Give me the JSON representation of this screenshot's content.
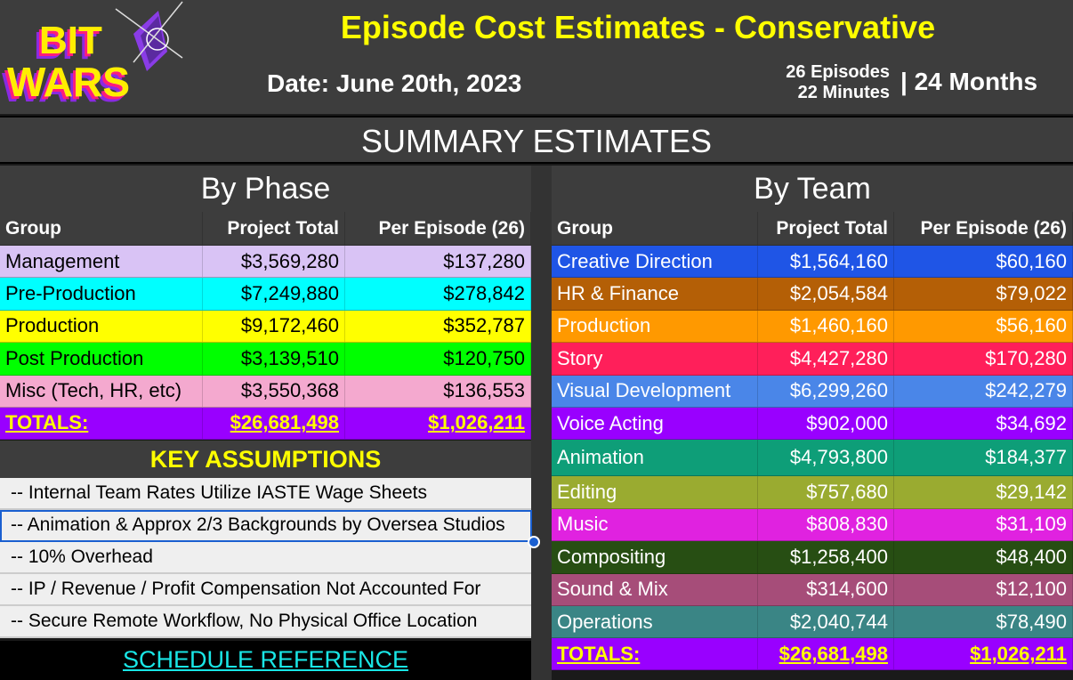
{
  "header": {
    "logo_text": "BIT WARS",
    "title": "Episode Cost Estimates - Conservative",
    "date": "Date: June 20th, 2023",
    "episodes": "26 Episodes",
    "minutes": "22 Minutes",
    "months": "| 24 Months"
  },
  "summary_title": "SUMMARY ESTIMATES",
  "by_phase": {
    "title": "By Phase",
    "columns": [
      "Group",
      "Project Total",
      "Per Episode (26)"
    ],
    "rows": [
      {
        "group": "Management",
        "total": "$3,569,280",
        "per": "$137,280",
        "color": "#d9c3f5",
        "text": "#000"
      },
      {
        "group": "Pre-Production",
        "total": "$7,249,880",
        "per": "$278,842",
        "color": "#00ffff",
        "text": "#000"
      },
      {
        "group": "Production",
        "total": "$9,172,460",
        "per": "$352,787",
        "color": "#ffff00",
        "text": "#000"
      },
      {
        "group": "Post Production",
        "total": "$3,139,510",
        "per": "$120,750",
        "color": "#00ff00",
        "text": "#000"
      },
      {
        "group": "Misc (Tech, HR, etc)",
        "total": "$3,550,368",
        "per": "$136,553",
        "color": "#f4a9cf",
        "text": "#000"
      }
    ],
    "totals": {
      "label": "TOTALS:",
      "total": "$26,681,498",
      "per": "$1,026,211"
    }
  },
  "by_team": {
    "title": "By Team",
    "columns": [
      "Group",
      "Project Total",
      "Per Episode (26)"
    ],
    "rows": [
      {
        "group": "Creative Direction",
        "total": "$1,564,160",
        "per": "$60,160",
        "color": "#1f55e6",
        "text": "#fff"
      },
      {
        "group": "HR & Finance",
        "total": "$2,054,584",
        "per": "$79,022",
        "color": "#b45f06",
        "text": "#fff"
      },
      {
        "group": "Production",
        "total": "$1,460,160",
        "per": "$56,160",
        "color": "#ff9900",
        "text": "#fff"
      },
      {
        "group": "Story",
        "total": "$4,427,280",
        "per": "$170,280",
        "color": "#ff1f5a",
        "text": "#fff"
      },
      {
        "group": "Visual Development",
        "total": "$6,299,260",
        "per": "$242,279",
        "color": "#4a86e8",
        "text": "#fff"
      },
      {
        "group": "Voice Acting",
        "total": "$902,000",
        "per": "$34,692",
        "color": "#9900ff",
        "text": "#fff"
      },
      {
        "group": "Animation",
        "total": "$4,793,800",
        "per": "$184,377",
        "color": "#0e9e78",
        "text": "#fff"
      },
      {
        "group": "Editing",
        "total": "$757,680",
        "per": "$29,142",
        "color": "#9aab30",
        "text": "#fff"
      },
      {
        "group": "Music",
        "total": "$808,830",
        "per": "$31,109",
        "color": "#e022e0",
        "text": "#fff"
      },
      {
        "group": "Compositing",
        "total": "$1,258,400",
        "per": "$48,400",
        "color": "#274e13",
        "text": "#fff"
      },
      {
        "group": "Sound & Mix",
        "total": "$314,600",
        "per": "$12,100",
        "color": "#a64d79",
        "text": "#fff"
      },
      {
        "group": "Operations",
        "total": "$2,040,744",
        "per": "$78,490",
        "color": "#3a8585",
        "text": "#fff"
      }
    ],
    "totals": {
      "label": "TOTALS:",
      "total": "$26,681,498",
      "per": "$1,026,211"
    }
  },
  "key_assumptions": {
    "title": "KEY ASSUMPTIONS",
    "items": [
      "-- Internal Team Rates Utilize IASTE Wage Sheets",
      "-- Animation & Approx 2/3 Backgrounds by Oversea Studios",
      "-- 10% Overhead",
      "-- IP / Revenue / Profit Compensation Not Accounted For",
      "-- Secure Remote Workflow, No Physical Office Location"
    ]
  },
  "schedule_link": "SCHEDULE REFERENCE",
  "totals_color": "#9900ff"
}
